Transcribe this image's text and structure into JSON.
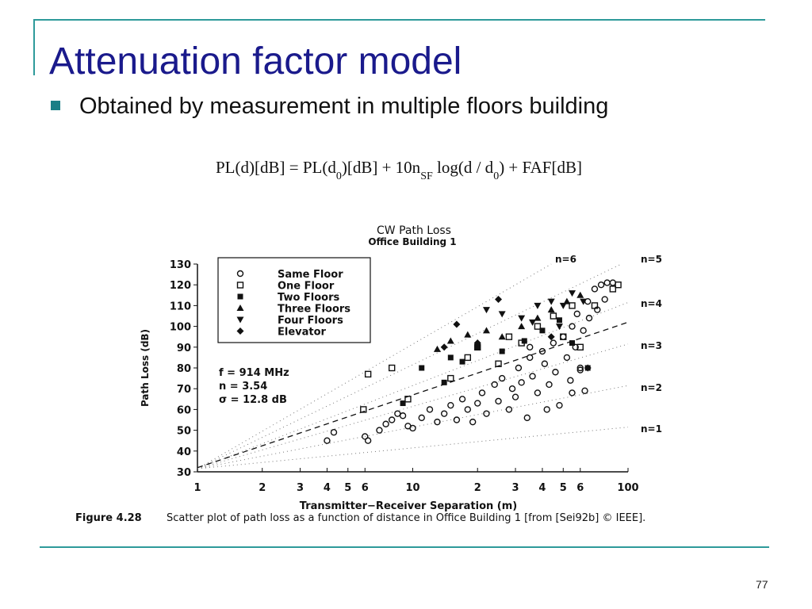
{
  "slide": {
    "title": "Attenuation factor model",
    "bullet": "Obtained by measurement in multiple floors building",
    "formula": [
      "PL(d)[dB] = PL(d",
      "0",
      ")[dB] + 10n",
      "SF",
      " log(d / d",
      "0",
      ") + FAF[dB]"
    ],
    "caption_label": "Figure 4.28",
    "caption_text": "Scatter plot of path loss as a function of distance in Office Building 1 [from [Sei92b] © IEEE].",
    "page_number": "77"
  },
  "chart_data": {
    "type": "scatter",
    "title": "CW Path Loss",
    "subtitle": "Office Building 1",
    "x_label": "Transmitter−Receiver Separation (m)",
    "y_label": "Path Loss (dB)",
    "x_log": true,
    "xlim": [
      1,
      100
    ],
    "ylim": [
      30,
      130
    ],
    "xticks": [
      1,
      2,
      3,
      4,
      5,
      6,
      10,
      {
        "value": 20,
        "label": "2"
      },
      {
        "value": 30,
        "label": "3"
      },
      {
        "value": 40,
        "label": "4"
      },
      {
        "value": 50,
        "label": "5"
      },
      {
        "value": 60,
        "label": "6"
      },
      100
    ],
    "yticks": [
      30,
      40,
      50,
      60,
      70,
      80,
      90,
      100,
      110,
      120,
      130
    ],
    "annotations": [
      "f = 914 MHz",
      "n = 3.54",
      "σ = 12.8 dB"
    ],
    "fit_line": {
      "x": [
        1,
        100
      ],
      "y": [
        32,
        102
      ]
    },
    "reference_lines": [
      {
        "label": "n=1",
        "x": [
          1,
          100
        ],
        "y": [
          31.5,
          51.5
        ]
      },
      {
        "label": "n=2",
        "x": [
          1,
          100
        ],
        "y": [
          31.5,
          71.5
        ]
      },
      {
        "label": "n=3",
        "x": [
          1,
          100
        ],
        "y": [
          31.5,
          91.5
        ]
      },
      {
        "label": "n=4",
        "x": [
          1,
          100
        ],
        "y": [
          31.5,
          111.5
        ]
      },
      {
        "label": "n=5",
        "x": [
          1,
          93
        ],
        "y": [
          31.5,
          130
        ]
      },
      {
        "label": "n=6",
        "x": [
          1,
          44
        ],
        "y": [
          31.5,
          130
        ]
      }
    ],
    "series": [
      {
        "name": "Same Floor",
        "marker": "circle",
        "color": "#111111",
        "x": [
          4,
          4.3,
          6,
          6.2,
          7,
          7.5,
          8,
          8.5,
          9,
          9.5,
          10,
          11,
          12,
          13,
          14,
          15,
          16,
          17,
          18,
          19,
          20,
          21,
          22,
          24,
          25,
          26,
          28,
          29,
          30,
          31,
          32,
          34,
          35,
          36,
          38,
          40,
          41,
          43,
          45,
          46,
          48,
          50,
          52,
          54,
          55,
          57,
          58,
          60,
          62,
          65,
          66,
          70,
          72,
          75,
          78,
          80,
          85,
          35,
          42,
          55,
          63,
          60
        ],
        "values": [
          45,
          49,
          47,
          45,
          50,
          53,
          55,
          58,
          57,
          52,
          51,
          56,
          60,
          54,
          58,
          62,
          55,
          65,
          60,
          54,
          63,
          68,
          58,
          72,
          64,
          75,
          60,
          70,
          66,
          80,
          73,
          56,
          85,
          76,
          68,
          88,
          82,
          72,
          92,
          78,
          62,
          95,
          85,
          74,
          100,
          90,
          106,
          80,
          98,
          112,
          104,
          118,
          108,
          120,
          113,
          121,
          121,
          90,
          60,
          68,
          69,
          79
        ]
      },
      {
        "name": "One Floor",
        "marker": "square",
        "color": "#111111",
        "x": [
          5.9,
          6.2,
          8,
          9.5,
          15,
          18,
          20,
          25,
          28,
          32,
          38,
          45,
          50,
          55,
          60,
          70,
          90,
          85
        ],
        "values": [
          60,
          77,
          80,
          65,
          75,
          85,
          90,
          82,
          95,
          92,
          100,
          105,
          95,
          110,
          90,
          110,
          120,
          118
        ]
      },
      {
        "name": "Two Floors",
        "marker": "filled-square",
        "color": "#111111",
        "x": [
          9,
          11,
          14,
          15,
          17,
          20,
          26,
          33,
          40,
          48,
          55,
          65
        ],
        "values": [
          63,
          80,
          73,
          85,
          83,
          90,
          88,
          93,
          98,
          103,
          92,
          80
        ]
      },
      {
        "name": "Three Floors",
        "marker": "triangle",
        "color": "#111111",
        "x": [
          13,
          15,
          18,
          22,
          26,
          32,
          38,
          44,
          52,
          60
        ],
        "values": [
          89,
          93,
          96,
          98,
          95,
          100,
          104,
          108,
          112,
          115
        ]
      },
      {
        "name": "Four Floors",
        "marker": "triangle-down",
        "color": "#111111",
        "x": [
          22,
          26,
          32,
          38,
          44,
          50,
          55,
          62,
          48,
          36
        ],
        "values": [
          108,
          106,
          104,
          110,
          112,
          110,
          116,
          112,
          100,
          102
        ]
      },
      {
        "name": "Elevator",
        "marker": "diamond",
        "color": "#111111",
        "x": [
          14,
          16,
          20,
          25,
          44,
          65
        ],
        "values": [
          90,
          101,
          92,
          113,
          95,
          80
        ]
      }
    ]
  }
}
